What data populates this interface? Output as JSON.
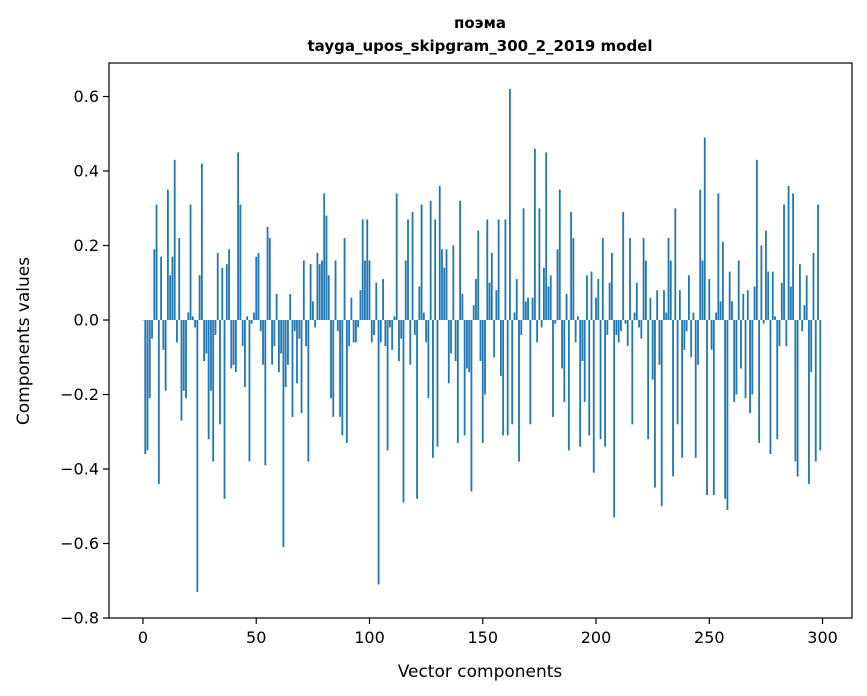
{
  "chart_data": {
    "type": "bar",
    "title_line1": "поэма",
    "title_line2": "tayga_upos_skipgram_300_2_2019 model",
    "xlabel": "Vector components",
    "ylabel": "Components values",
    "xlim": [
      -15,
      313
    ],
    "ylim": [
      -0.8,
      0.69
    ],
    "xticks": [
      0,
      50,
      100,
      150,
      200,
      250,
      300
    ],
    "xtick_labels": [
      "0",
      "50",
      "100",
      "150",
      "200",
      "250",
      "300"
    ],
    "yticks": [
      -0.8,
      -0.6,
      -0.4,
      -0.2,
      0.0,
      0.2,
      0.4,
      0.6
    ],
    "ytick_labels": [
      "−0.8",
      "−0.6",
      "−0.4",
      "−0.2",
      "0.0",
      "0.2",
      "0.4",
      "0.6"
    ],
    "bar_color": "#1f77b4",
    "bar_width": 0.8,
    "values": [
      0.0,
      -0.36,
      -0.35,
      -0.21,
      -0.05,
      0.19,
      0.31,
      -0.44,
      0.17,
      -0.08,
      -0.19,
      0.35,
      0.12,
      0.17,
      0.43,
      -0.06,
      0.22,
      -0.27,
      -0.19,
      -0.21,
      0.02,
      0.31,
      0.01,
      -0.02,
      -0.73,
      0.12,
      0.42,
      -0.11,
      -0.09,
      -0.32,
      -0.19,
      -0.38,
      -0.04,
      0.18,
      -0.28,
      0.14,
      -0.48,
      0.15,
      0.19,
      -0.13,
      -0.12,
      -0.14,
      0.45,
      0.31,
      -0.07,
      -0.18,
      0.01,
      -0.38,
      -0.01,
      0.02,
      0.17,
      0.18,
      -0.03,
      -0.12,
      -0.39,
      0.25,
      0.22,
      -0.12,
      -0.07,
      0.07,
      -0.14,
      -0.09,
      -0.61,
      -0.18,
      -0.12,
      0.07,
      -0.26,
      -0.03,
      -0.17,
      -0.05,
      -0.25,
      0.16,
      -0.07,
      -0.38,
      0.15,
      0.05,
      -0.02,
      0.18,
      0.15,
      0.16,
      0.34,
      0.28,
      0.12,
      -0.21,
      -0.26,
      0.16,
      -0.03,
      -0.26,
      -0.31,
      0.22,
      -0.33,
      -0.07,
      0.06,
      -0.06,
      -0.06,
      -0.02,
      0.08,
      0.27,
      0.16,
      0.27,
      0.16,
      -0.06,
      -0.04,
      0.1,
      -0.71,
      -0.06,
      0.11,
      -0.07,
      -0.35,
      -0.02,
      -0.08,
      0.01,
      0.34,
      -0.11,
      -0.05,
      -0.49,
      0.16,
      0.27,
      -0.12,
      0.29,
      -0.04,
      -0.48,
      0.09,
      0.31,
      0.02,
      -0.06,
      -0.21,
      0.32,
      -0.37,
      0.27,
      -0.34,
      0.36,
      0.19,
      0.14,
      0.19,
      -0.17,
      -0.09,
      0.2,
      -0.11,
      -0.33,
      0.32,
      0.07,
      -0.31,
      -0.13,
      -0.14,
      -0.46,
      0.04,
      0.11,
      0.24,
      -0.11,
      -0.33,
      -0.2,
      0.27,
      0.1,
      0.18,
      -0.1,
      0.08,
      0.27,
      -0.15,
      -0.31,
      0.27,
      -0.31,
      0.62,
      -0.28,
      0.02,
      0.11,
      -0.38,
      -0.04,
      0.3,
      0.05,
      0.06,
      -0.28,
      0.06,
      0.46,
      -0.06,
      0.3,
      -0.02,
      0.14,
      0.45,
      0.09,
      0.12,
      -0.26,
      -0.01,
      0.19,
      0.35,
      -0.13,
      -0.22,
      0.07,
      -0.35,
      0.29,
      0.22,
      -0.06,
      0.01,
      -0.34,
      -0.11,
      -0.22,
      0.12,
      -0.31,
      0.13,
      -0.41,
      0.06,
      0.11,
      -0.32,
      0.22,
      -0.34,
      -0.04,
      0.1,
      0.18,
      -0.53,
      -0.04,
      -0.06,
      -0.03,
      0.29,
      -0.01,
      -0.07,
      0.22,
      -0.28,
      0.02,
      0.1,
      -0.02,
      -0.05,
      0.22,
      0.16,
      -0.32,
      0.06,
      -0.16,
      -0.45,
      0.08,
      -0.12,
      -0.5,
      0.08,
      0.02,
      0.22,
      0.16,
      -0.42,
      0.3,
      -0.28,
      0.08,
      -0.37,
      -0.08,
      -0.03,
      0.12,
      -0.1,
      0.02,
      -0.37,
      -0.12,
      0.35,
      0.16,
      0.49,
      -0.47,
      0.11,
      -0.08,
      -0.47,
      0.02,
      0.34,
      0.05,
      0.21,
      -0.48,
      -0.51,
      0.13,
      0.05,
      -0.22,
      -0.2,
      0.16,
      -0.13,
      0.07,
      -0.21,
      0.08,
      -0.25,
      -0.2,
      0.09,
      0.43,
      -0.33,
      0.2,
      -0.01,
      0.24,
      0.13,
      -0.36,
      0.13,
      0.01,
      -0.32,
      -0.07,
      0.1,
      0.31,
      -0.07,
      0.36,
      0.09,
      0.34,
      -0.38,
      -0.42,
      0.15,
      -0.03,
      0.04,
      0.12,
      -0.44,
      -0.14,
      0.18,
      -0.38,
      0.31,
      -0.35
    ]
  }
}
